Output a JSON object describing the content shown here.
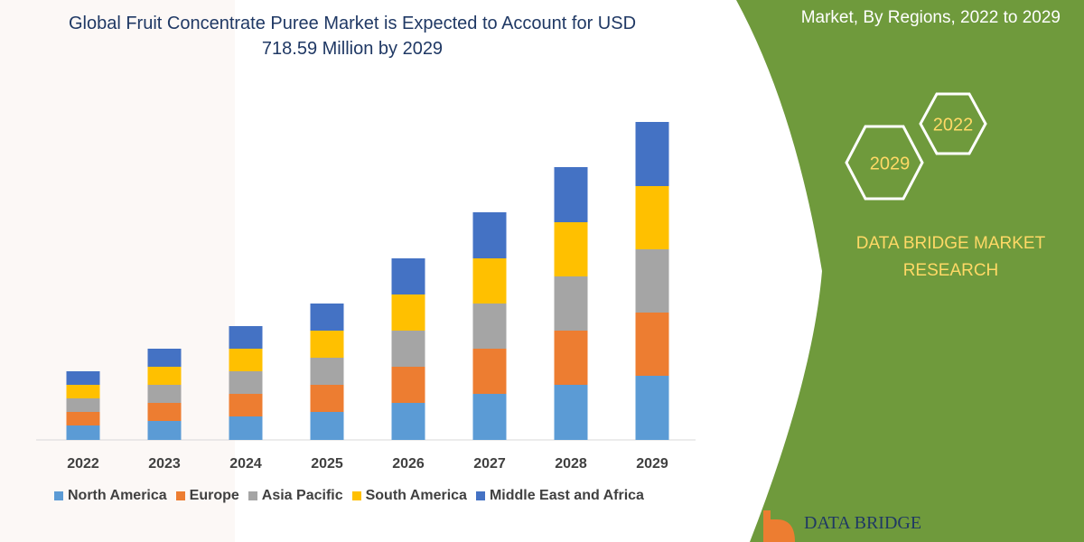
{
  "chart_data": {
    "type": "stacked_bar",
    "title": "Global Fruit Concentrate Puree Market is Expected to Account for USD 718.59 Million by 2029",
    "categories": [
      "2022",
      "2023",
      "2024",
      "2025",
      "2026",
      "2027",
      "2028",
      "2029"
    ],
    "series": [
      {
        "name": "North America",
        "color": "#5b9bd5",
        "values": [
          16,
          21,
          26,
          31,
          41,
          51,
          61,
          71
        ]
      },
      {
        "name": "Europe",
        "color": "#ed7d31",
        "values": [
          15,
          20,
          25,
          30,
          40,
          50,
          60,
          70
        ]
      },
      {
        "name": "Asia Pacific",
        "color": "#a5a5a5",
        "values": [
          15,
          20,
          25,
          30,
          40,
          50,
          60,
          70
        ]
      },
      {
        "name": "South America",
        "color": "#ffc000",
        "values": [
          15,
          20,
          25,
          30,
          40,
          50,
          60,
          70
        ]
      },
      {
        "name": "Middle East and Africa",
        "color": "#4472c4",
        "values": [
          15,
          20,
          25,
          30,
          40,
          51,
          61,
          71
        ]
      }
    ],
    "ylim": [
      0,
      352
    ]
  },
  "panel": {
    "subtitle": "Market, By Regions, 2022 to 2029",
    "hexagons": [
      "2022",
      "2029"
    ],
    "brand": "DATA BRIDGE MARKET RESEARCH",
    "logo": "DATA BRIDGE"
  }
}
